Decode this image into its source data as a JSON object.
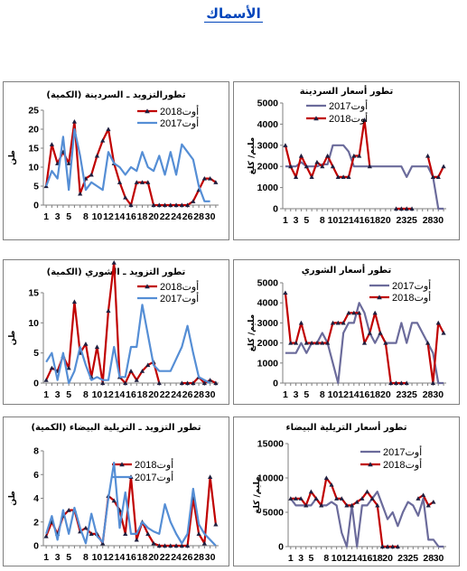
{
  "page": {
    "title": "الأسماك"
  },
  "chart_data": [
    {
      "id": "sardine-supply",
      "type": "line",
      "title": "تطورالتزويد ـ السردينة (الكمية)",
      "xlabel": "",
      "ylabel": "طن",
      "ylim": [
        0,
        25
      ],
      "yticks": [
        0,
        5,
        10,
        15,
        20,
        25
      ],
      "xlim": [
        0.5,
        31.5
      ],
      "xticks": [
        1,
        3,
        5,
        8,
        10,
        12,
        14,
        16,
        18,
        20,
        22,
        24,
        26,
        28,
        30
      ],
      "legend_position": "top-right",
      "grid": false,
      "series": [
        {
          "name": "أوت2018",
          "color": "#c00000",
          "marker": "triangle",
          "x": [
            1,
            2,
            3,
            4,
            5,
            6,
            7,
            8,
            9,
            10,
            11,
            12,
            13,
            14,
            15,
            16,
            17,
            18,
            19,
            20,
            21,
            22,
            23,
            24,
            25,
            26,
            27,
            28,
            29,
            30,
            31
          ],
          "values": [
            5,
            16,
            11,
            14,
            11,
            22,
            3,
            7,
            8,
            13,
            17,
            20,
            11,
            6,
            2,
            0,
            6,
            6,
            6,
            0,
            0,
            0,
            0,
            0,
            0,
            0,
            1,
            4,
            7,
            7,
            6
          ]
        },
        {
          "name": "أوت2017",
          "color": "#558ed5",
          "marker": "none",
          "x": [
            1,
            2,
            3,
            4,
            5,
            6,
            7,
            8,
            9,
            10,
            11,
            12,
            13,
            14,
            15,
            16,
            17,
            18,
            19,
            20,
            21,
            22,
            23,
            24,
            25,
            26,
            27,
            28,
            29,
            30,
            31
          ],
          "values": [
            5,
            9,
            7,
            18,
            4,
            20,
            13,
            4,
            6,
            5,
            4,
            14,
            11,
            10,
            8,
            10,
            9,
            14,
            10,
            9,
            13,
            8,
            14,
            8,
            16,
            14,
            12,
            5,
            1,
            1,
            null
          ]
        }
      ]
    },
    {
      "id": "sardine-price",
      "type": "line",
      "title": "تطور أسعار السردينة",
      "xlabel": "",
      "ylabel": "مليم/ كلغ",
      "ylim": [
        0,
        5000
      ],
      "yticks": [
        0,
        1000,
        2000,
        3000,
        4000,
        5000
      ],
      "xlim": [
        0.5,
        31.5
      ],
      "xticks": [
        1,
        3,
        5,
        8,
        10,
        12,
        14,
        16,
        18,
        20,
        23,
        25,
        28,
        30
      ],
      "legend_position": "top-left",
      "grid": false,
      "series": [
        {
          "name": "أوت2017",
          "color": "#6b6b9b",
          "marker": "none",
          "x": [
            1,
            2,
            3,
            4,
            5,
            6,
            7,
            8,
            9,
            10,
            11,
            12,
            13,
            14,
            15,
            16,
            17,
            18,
            19,
            20,
            21,
            22,
            23,
            24,
            25,
            26,
            27,
            28,
            29,
            30,
            31
          ],
          "values": [
            2000,
            2000,
            2000,
            2200,
            2000,
            2000,
            2000,
            2100,
            2100,
            3000,
            3000,
            3000,
            2700,
            2000,
            2000,
            2000,
            2000,
            2000,
            2000,
            2000,
            2000,
            2000,
            2000,
            1500,
            2000,
            2000,
            2000,
            2000,
            1500,
            0,
            0
          ]
        },
        {
          "name": "أوت2018",
          "color": "#c00000",
          "marker": "triangle",
          "x": [
            1,
            2,
            3,
            4,
            5,
            6,
            7,
            8,
            9,
            10,
            11,
            12,
            13,
            14,
            15,
            16,
            17,
            18,
            19,
            20,
            21,
            22,
            23,
            24,
            25,
            26,
            27,
            28,
            29,
            30,
            31
          ],
          "values": [
            3000,
            2000,
            1500,
            2500,
            2000,
            1500,
            2200,
            2000,
            2500,
            2000,
            1500,
            1500,
            1500,
            2500,
            2500,
            4200,
            2000,
            null,
            null,
            null,
            null,
            0,
            0,
            0,
            0,
            null,
            null,
            2500,
            1500,
            1500,
            2000
          ]
        }
      ]
    },
    {
      "id": "shoury-supply",
      "type": "line",
      "title": "تطور التزويد ـ الشوري (الكمية)",
      "xlabel": "",
      "ylabel": "طن",
      "ylim": [
        0,
        15
      ],
      "yticks": [
        0,
        5,
        10,
        15
      ],
      "xlim": [
        0.5,
        31.5
      ],
      "xticks": [
        1,
        3,
        5,
        8,
        10,
        12,
        14,
        16,
        18,
        20,
        22,
        24,
        26,
        28,
        30
      ],
      "legend_position": "top-right",
      "grid": false,
      "series": [
        {
          "name": "أوت2018",
          "color": "#c00000",
          "marker": "triangle",
          "x": [
            1,
            2,
            3,
            4,
            5,
            6,
            7,
            8,
            9,
            10,
            11,
            12,
            13,
            14,
            15,
            16,
            17,
            18,
            19,
            20,
            21,
            22,
            23,
            24,
            25,
            26,
            27,
            28,
            29,
            30,
            31
          ],
          "values": [
            0.5,
            2.5,
            2,
            4.5,
            2.5,
            13.5,
            5,
            6.5,
            1,
            6,
            0,
            12,
            20,
            1,
            0,
            2,
            0.5,
            2,
            3,
            3.5,
            0,
            null,
            null,
            null,
            0,
            0,
            0,
            1,
            0,
            0.5,
            0
          ]
        },
        {
          "name": "أوت2017",
          "color": "#558ed5",
          "marker": "none",
          "x": [
            1,
            2,
            3,
            4,
            5,
            6,
            7,
            8,
            9,
            10,
            11,
            12,
            13,
            14,
            15,
            16,
            17,
            18,
            19,
            20,
            21,
            22,
            23,
            24,
            25,
            26,
            27,
            28,
            29,
            30,
            31
          ],
          "values": [
            3.5,
            5,
            0.5,
            5,
            0,
            2,
            6,
            3,
            0.5,
            1,
            0.5,
            0.5,
            6,
            1,
            1,
            6,
            6,
            13,
            8,
            3,
            2,
            2,
            2,
            4,
            6,
            9.5,
            5,
            1,
            0.5,
            0,
            null
          ]
        }
      ]
    },
    {
      "id": "shoury-price",
      "type": "line",
      "title": "تطور أسعار الشوري",
      "xlabel": "",
      "ylabel": "مليم/ كلغ",
      "ylim": [
        0,
        5000
      ],
      "yticks": [
        0,
        1000,
        2000,
        3000,
        4000,
        5000
      ],
      "xlim": [
        0.5,
        31.5
      ],
      "xticks": [
        1,
        3,
        5,
        8,
        10,
        12,
        14,
        16,
        18,
        20,
        23,
        25,
        28,
        30
      ],
      "legend_position": "top-right",
      "grid": false,
      "series": [
        {
          "name": "أوت2017",
          "color": "#6b6b9b",
          "marker": "none",
          "x": [
            1,
            2,
            3,
            4,
            5,
            6,
            7,
            8,
            9,
            10,
            11,
            12,
            13,
            14,
            15,
            16,
            17,
            18,
            19,
            20,
            21,
            22,
            23,
            24,
            25,
            26,
            27,
            28,
            29,
            30,
            31
          ],
          "values": [
            1500,
            1500,
            1500,
            2000,
            1500,
            2000,
            2000,
            2500,
            2000,
            1000,
            0,
            2500,
            3000,
            3000,
            4000,
            3500,
            2500,
            2000,
            2500,
            2000,
            2000,
            2000,
            3000,
            2000,
            3000,
            3000,
            2500,
            2000,
            1500,
            0,
            0
          ]
        },
        {
          "name": "أوت2018",
          "color": "#c00000",
          "marker": "triangle",
          "x": [
            1,
            2,
            3,
            4,
            5,
            6,
            7,
            8,
            9,
            10,
            11,
            12,
            13,
            14,
            15,
            16,
            17,
            18,
            19,
            20,
            21,
            22,
            23,
            24,
            25,
            26,
            27,
            28,
            29,
            30,
            31
          ],
          "values": [
            4500,
            2000,
            2000,
            3000,
            2000,
            2000,
            2000,
            2000,
            2000,
            3000,
            3000,
            3000,
            3500,
            3500,
            3500,
            2000,
            2500,
            3500,
            2500,
            2000,
            0,
            0,
            0,
            0,
            null,
            null,
            null,
            2000,
            0,
            3000,
            2500
          ]
        }
      ]
    },
    {
      "id": "bream-supply",
      "type": "line",
      "title": "تطور التزويد ـ التريلية البيضاء (الكمية)",
      "xlabel": "",
      "ylabel": "طن",
      "ylim": [
        0,
        8
      ],
      "yticks": [
        0,
        2,
        4,
        6,
        8
      ],
      "xlim": [
        0.5,
        31.5
      ],
      "xticks": [
        1,
        3,
        5,
        8,
        10,
        12,
        14,
        16,
        18,
        20,
        22,
        24,
        26,
        28,
        30
      ],
      "legend_position": "top-center",
      "grid": false,
      "series": [
        {
          "name": "أوت2018",
          "color": "#c00000",
          "marker": "triangle",
          "x": [
            1,
            2,
            3,
            4,
            5,
            6,
            7,
            8,
            9,
            10,
            11,
            12,
            13,
            14,
            15,
            16,
            17,
            18,
            19,
            20,
            21,
            22,
            23,
            24,
            25,
            26,
            27,
            28,
            29,
            30,
            31
          ],
          "values": [
            0.8,
            2,
            1,
            2.5,
            3,
            3,
            1.2,
            1.5,
            1,
            1,
            0.2,
            4.2,
            3.8,
            3,
            1,
            5.8,
            0.5,
            2,
            1,
            0.2,
            0,
            0,
            0,
            0,
            0,
            0,
            4,
            1,
            0.2,
            5.8,
            1.8
          ]
        },
        {
          "name": "أوت2017",
          "color": "#558ed5",
          "marker": "none",
          "x": [
            1,
            2,
            3,
            4,
            5,
            6,
            7,
            8,
            9,
            10,
            11,
            12,
            13,
            14,
            15,
            16,
            17,
            18,
            19,
            20,
            21,
            22,
            23,
            24,
            25,
            26,
            27,
            28,
            29,
            30,
            31
          ],
          "values": [
            1,
            2.5,
            0.5,
            3,
            1,
            3.2,
            1.5,
            0.2,
            2.7,
            0.8,
            0.3,
            4,
            7,
            1.5,
            4.5,
            1,
            1,
            2,
            1.5,
            1.2,
            1,
            3.5,
            2,
            1,
            0.2,
            1,
            4.8,
            1.8,
            1,
            0.5,
            0
          ]
        }
      ]
    },
    {
      "id": "bream-price",
      "type": "line",
      "title": "تطور أسعار التريلية البيضاء",
      "xlabel": "",
      "ylabel": "مليم/ كلغ",
      "ylim": [
        0,
        15000
      ],
      "yticks": [
        0,
        5000,
        10000,
        15000
      ],
      "xlim": [
        0.5,
        31.5
      ],
      "xticks": [
        1,
        3,
        5,
        8,
        10,
        12,
        14,
        16,
        18,
        20,
        23,
        25,
        28,
        30
      ],
      "legend_position": "top-right",
      "grid": false,
      "series": [
        {
          "name": "أوت2017",
          "color": "#6b6b9b",
          "marker": "none",
          "x": [
            1,
            2,
            3,
            4,
            5,
            6,
            7,
            8,
            9,
            10,
            11,
            12,
            13,
            14,
            15,
            16,
            17,
            18,
            19,
            20,
            21,
            22,
            23,
            24,
            25,
            26,
            27,
            28,
            29,
            30,
            31
          ],
          "values": [
            7000,
            6000,
            6000,
            6000,
            6000,
            7000,
            6000,
            6000,
            6500,
            6000,
            2000,
            0,
            6000,
            0,
            6000,
            6000,
            7000,
            8000,
            6000,
            4000,
            5000,
            3000,
            5000,
            6500,
            6000,
            4500,
            7000,
            1000,
            1000,
            0,
            0
          ]
        },
        {
          "name": "أوت2018",
          "color": "#c00000",
          "marker": "triangle",
          "x": [
            1,
            2,
            3,
            4,
            5,
            6,
            7,
            8,
            9,
            10,
            11,
            12,
            13,
            14,
            15,
            16,
            17,
            18,
            19,
            20,
            21,
            22,
            23,
            24,
            25,
            26,
            27,
            28,
            29,
            30,
            31
          ],
          "values": [
            7000,
            7000,
            7000,
            6000,
            8000,
            7000,
            6000,
            10000,
            9000,
            7000,
            7000,
            6000,
            6000,
            6500,
            7000,
            8000,
            7000,
            6000,
            0,
            0,
            0,
            0,
            null,
            null,
            null,
            7000,
            7500,
            6000,
            6500,
            null,
            null
          ]
        }
      ]
    }
  ]
}
